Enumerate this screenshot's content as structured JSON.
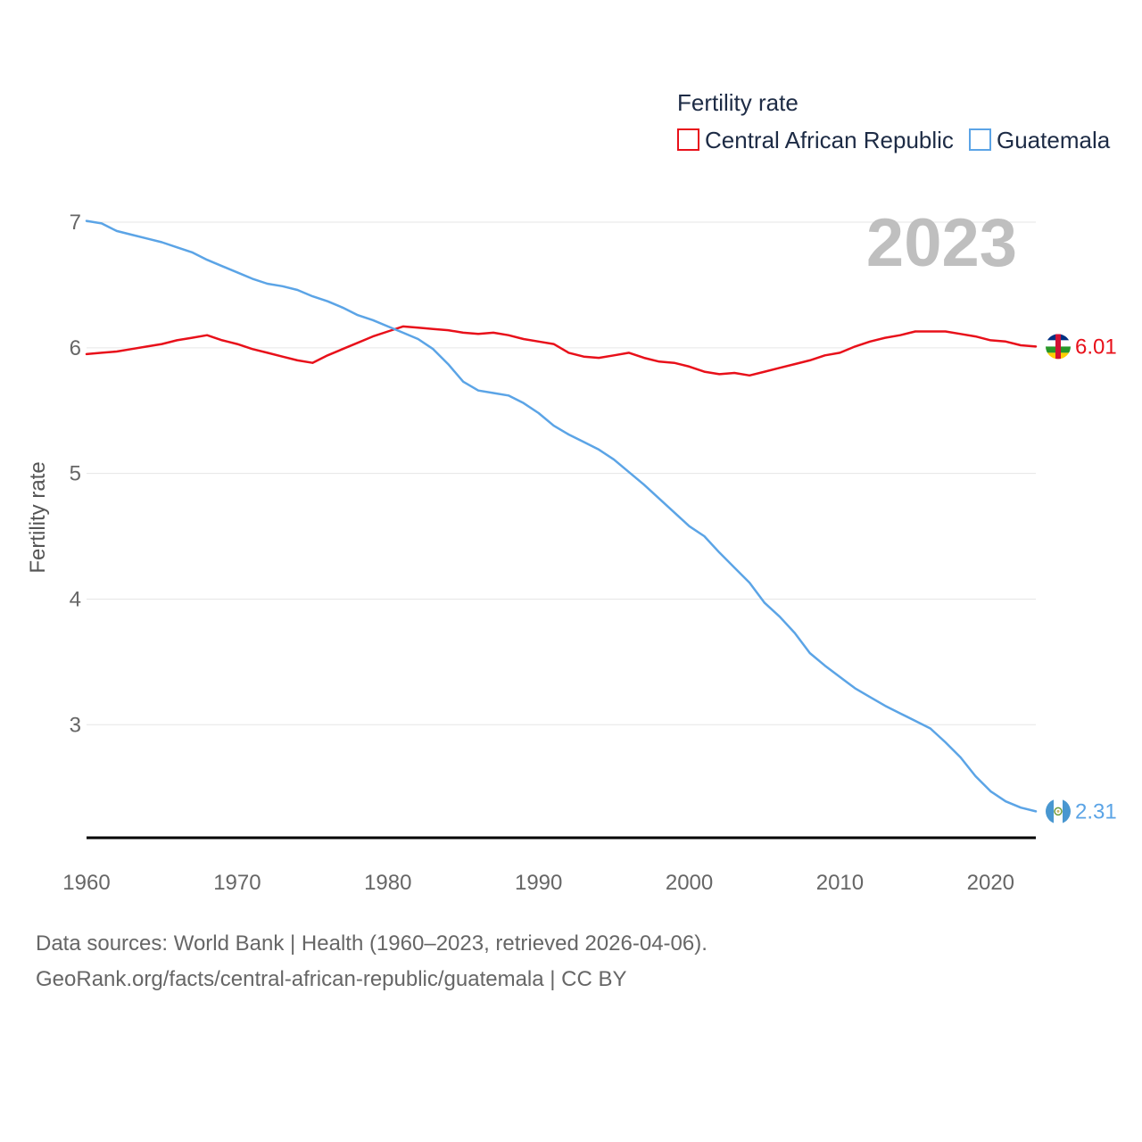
{
  "chart_data": {
    "type": "line",
    "legend_title": "Fertility rate",
    "ylabel": "Fertility rate",
    "xlabel": "",
    "year_label": "2023",
    "xlim": [
      1960,
      2023
    ],
    "ylim": [
      2.1,
      7.0
    ],
    "y_ticks": [
      3,
      4,
      5,
      6,
      7
    ],
    "y_tick_labels": [
      "3",
      "4",
      "5",
      "6",
      "7"
    ],
    "x_ticks": [
      1960,
      1970,
      1980,
      1990,
      2000,
      2010,
      2020
    ],
    "x_tick_labels": [
      "1960",
      "1970",
      "1980",
      "1990",
      "2000",
      "2010",
      "2020"
    ],
    "legend_position": "top-right",
    "grid": true,
    "x": [
      1960,
      1961,
      1962,
      1963,
      1964,
      1965,
      1966,
      1967,
      1968,
      1969,
      1970,
      1971,
      1972,
      1973,
      1974,
      1975,
      1976,
      1977,
      1978,
      1979,
      1980,
      1981,
      1982,
      1983,
      1984,
      1985,
      1986,
      1987,
      1988,
      1989,
      1990,
      1991,
      1992,
      1993,
      1994,
      1995,
      1996,
      1997,
      1998,
      1999,
      2000,
      2001,
      2002,
      2003,
      2004,
      2005,
      2006,
      2007,
      2008,
      2009,
      2010,
      2011,
      2012,
      2013,
      2014,
      2015,
      2016,
      2017,
      2018,
      2019,
      2020,
      2021,
      2022,
      2023
    ],
    "series": [
      {
        "name": "Central African Republic",
        "color": "#e8101a",
        "end_label": "6.01",
        "values": [
          5.95,
          5.96,
          5.97,
          5.99,
          6.01,
          6.03,
          6.06,
          6.08,
          6.1,
          6.06,
          6.03,
          5.99,
          5.96,
          5.93,
          5.9,
          5.88,
          5.94,
          5.99,
          6.04,
          6.09,
          6.13,
          6.17,
          6.16,
          6.15,
          6.14,
          6.12,
          6.11,
          6.12,
          6.1,
          6.07,
          6.05,
          6.03,
          5.96,
          5.93,
          5.92,
          5.94,
          5.96,
          5.92,
          5.89,
          5.88,
          5.85,
          5.81,
          5.79,
          5.8,
          5.78,
          5.81,
          5.84,
          5.87,
          5.9,
          5.94,
          5.96,
          6.01,
          6.05,
          6.08,
          6.1,
          6.13,
          6.13,
          6.13,
          6.11,
          6.09,
          6.06,
          6.05,
          6.02,
          6.01
        ]
      },
      {
        "name": "Guatemala",
        "color": "#5ba4e6",
        "end_label": "2.31",
        "values": [
          7.01,
          6.99,
          6.93,
          6.9,
          6.87,
          6.84,
          6.8,
          6.76,
          6.7,
          6.65,
          6.6,
          6.55,
          6.51,
          6.49,
          6.46,
          6.41,
          6.37,
          6.32,
          6.26,
          6.22,
          6.17,
          6.12,
          6.07,
          5.99,
          5.87,
          5.73,
          5.66,
          5.64,
          5.62,
          5.56,
          5.48,
          5.38,
          5.31,
          5.25,
          5.19,
          5.11,
          5.01,
          4.91,
          4.8,
          4.69,
          4.58,
          4.5,
          4.37,
          4.25,
          4.13,
          3.97,
          3.86,
          3.73,
          3.57,
          3.47,
          3.38,
          3.29,
          3.22,
          3.15,
          3.09,
          3.03,
          2.97,
          2.86,
          2.74,
          2.59,
          2.47,
          2.39,
          2.34,
          2.31
        ]
      }
    ]
  },
  "footer": {
    "line1": "Data sources: World Bank | Health (1960–2023, retrieved 2026-04-06).",
    "line2": "GeoRank.org/facts/central-african-republic/guatemala | CC BY"
  },
  "colors": {
    "grid": "#e6e6e6",
    "axis": "#000000",
    "year": "#bfbfbf"
  },
  "icons": {
    "car_flag": "central-african-republic-flag-icon",
    "gt_flag": "guatemala-flag-icon"
  }
}
